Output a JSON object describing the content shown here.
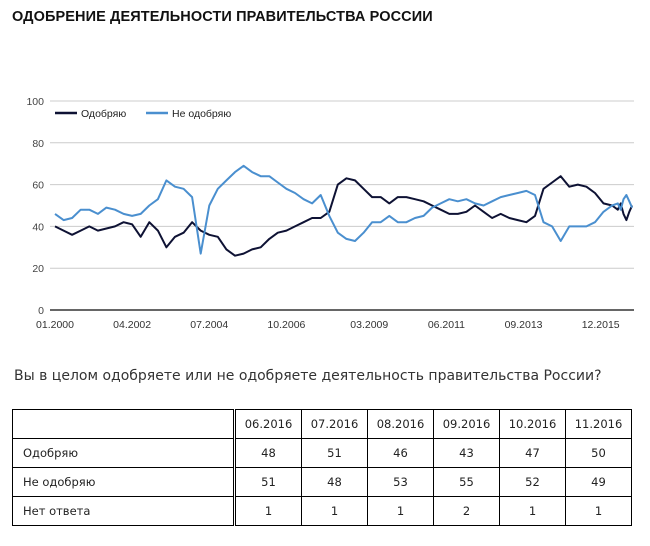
{
  "title": "ОДОБРЕНИЕ ДЕЯТЕЛЬНОСТИ ПРАВИТЕЛЬСТВА РОССИИ",
  "question": "Вы в целом одобряете или не одобряете деятельность правительства России?",
  "chart_data": {
    "type": "line",
    "title": "",
    "xlabel": "",
    "ylabel": "",
    "ylim": [
      0,
      100
    ],
    "yticks": [
      0,
      20,
      40,
      60,
      80,
      100
    ],
    "xticks": [
      "01.2000",
      "04.2002",
      "07.2004",
      "10.2006",
      "03.2009",
      "06.2011",
      "09.2013",
      "12.2015"
    ],
    "grid": true,
    "legend": "top-left",
    "x": [
      "01.2000",
      "04.2000",
      "07.2000",
      "10.2000",
      "01.2001",
      "04.2001",
      "07.2001",
      "10.2001",
      "01.2002",
      "04.2002",
      "07.2002",
      "10.2002",
      "01.2003",
      "04.2003",
      "07.2003",
      "10.2003",
      "01.2004",
      "04.2004",
      "07.2004",
      "10.2004",
      "01.2005",
      "04.2005",
      "07.2005",
      "10.2005",
      "01.2006",
      "04.2006",
      "07.2006",
      "10.2006",
      "01.2007",
      "04.2007",
      "07.2007",
      "10.2007",
      "01.2008",
      "04.2008",
      "07.2008",
      "10.2008",
      "01.2009",
      "04.2009",
      "07.2009",
      "10.2009",
      "01.2010",
      "04.2010",
      "07.2010",
      "10.2010",
      "01.2011",
      "04.2011",
      "07.2011",
      "10.2011",
      "01.2012",
      "04.2012",
      "07.2012",
      "10.2012",
      "01.2013",
      "04.2013",
      "07.2013",
      "10.2013",
      "01.2014",
      "04.2014",
      "07.2014",
      "10.2014",
      "01.2015",
      "04.2015",
      "07.2015",
      "10.2015",
      "01.2016",
      "04.2016",
      "06.2016",
      "07.2016",
      "08.2016",
      "09.2016",
      "10.2016",
      "11.2016"
    ],
    "series": [
      {
        "name": "Одобряю",
        "color": "#0e1234",
        "values": [
          40,
          38,
          36,
          38,
          40,
          38,
          39,
          40,
          42,
          41,
          35,
          42,
          38,
          30,
          35,
          37,
          42,
          38,
          36,
          35,
          29,
          26,
          27,
          29,
          30,
          34,
          37,
          38,
          40,
          42,
          44,
          44,
          47,
          60,
          63,
          62,
          58,
          54,
          54,
          51,
          54,
          54,
          53,
          52,
          50,
          48,
          46,
          46,
          47,
          50,
          47,
          44,
          46,
          44,
          43,
          42,
          45,
          58,
          61,
          64,
          59,
          60,
          59,
          56,
          51,
          50,
          48,
          51,
          46,
          43,
          47,
          50
        ]
      },
      {
        "name": "Не одобряю",
        "color": "#4a8fcf",
        "values": [
          46,
          43,
          44,
          48,
          48,
          46,
          49,
          48,
          46,
          45,
          46,
          50,
          53,
          62,
          59,
          58,
          54,
          27,
          50,
          58,
          62,
          66,
          69,
          66,
          64,
          64,
          61,
          58,
          56,
          53,
          51,
          55,
          45,
          37,
          34,
          33,
          37,
          42,
          42,
          45,
          42,
          42,
          44,
          45,
          49,
          51,
          53,
          52,
          53,
          51,
          50,
          52,
          54,
          55,
          56,
          57,
          55,
          42,
          40,
          33,
          40,
          40,
          40,
          42,
          47,
          50,
          51,
          48,
          53,
          55,
          52,
          49
        ]
      }
    ]
  },
  "table": {
    "columns": [
      "06.2016",
      "07.2016",
      "08.2016",
      "09.2016",
      "10.2016",
      "11.2016"
    ],
    "rows": [
      {
        "label": "Одобряю",
        "values": [
          "48",
          "51",
          "46",
          "43",
          "47",
          "50"
        ]
      },
      {
        "label": "Не одобряю",
        "values": [
          "51",
          "48",
          "53",
          "55",
          "52",
          "49"
        ]
      },
      {
        "label": "Нет ответа",
        "values": [
          "1",
          "1",
          "1",
          "2",
          "1",
          "1"
        ]
      }
    ]
  }
}
